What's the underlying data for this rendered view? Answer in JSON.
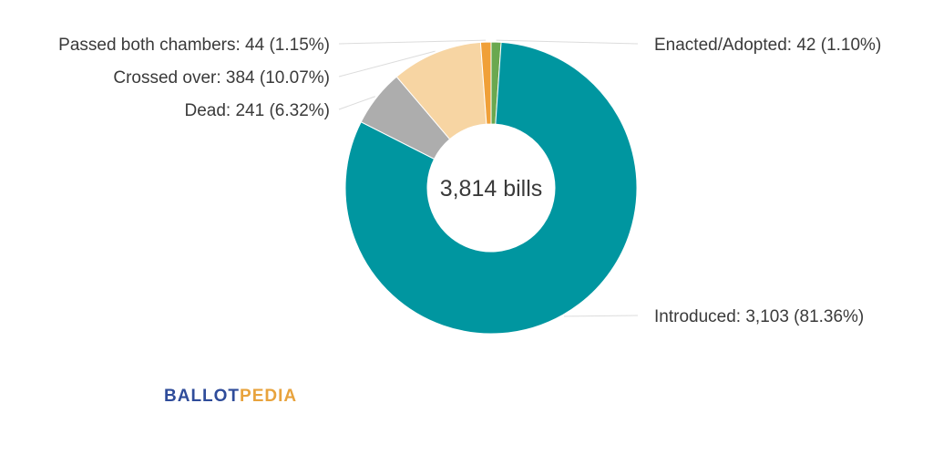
{
  "chart_data": {
    "type": "pie",
    "style": "donut",
    "center_label": "3,814 bills",
    "slices": [
      {
        "name": "Enacted/Adopted",
        "label": "Enacted/Adopted: 42 (1.10%)",
        "value": 42,
        "color": "#6aa84f"
      },
      {
        "name": "Introduced",
        "label": "Introduced: 3,103 (81.36%)",
        "value": 3103,
        "color": "#0096a0"
      },
      {
        "name": "Dead",
        "label": "Dead: 241 (6.32%)",
        "value": 241,
        "color": "#adadad"
      },
      {
        "name": "Crossed over",
        "label": "Crossed over: 384 (10.07%)",
        "value": 384,
        "color": "#f7d5a3"
      },
      {
        "name": "Passed both chambers",
        "label": "Passed both chambers: 44 (1.15%)",
        "value": 44,
        "color": "#f0a038"
      }
    ],
    "total": 3814
  },
  "logo": {
    "part_a": "BALLOT",
    "part_b": "PEDIA"
  }
}
